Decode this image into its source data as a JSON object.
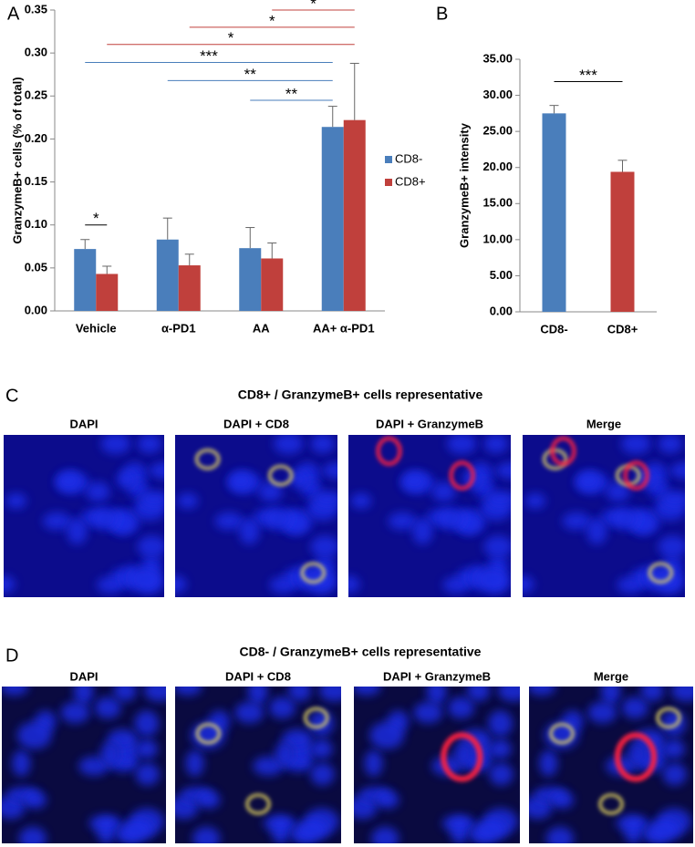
{
  "chart_data": [
    {
      "type": "grouped_bar",
      "panel": "A",
      "ylabel": "GranzymeB+ cells (% of total)",
      "categories": [
        "Vehicle",
        "α-PD1",
        "AA",
        "AA+ α-PD1"
      ],
      "series": [
        {
          "name": "CD8-",
          "color": "#4a7ebb",
          "values": [
            0.072,
            0.083,
            0.073,
            0.214
          ],
          "errors": [
            0.011,
            0.025,
            0.024,
            0.024
          ]
        },
        {
          "name": "CD8+",
          "color": "#c0403c",
          "values": [
            0.043,
            0.053,
            0.061,
            0.222
          ],
          "errors": [
            0.009,
            0.013,
            0.018,
            0.066
          ]
        }
      ],
      "ylim": [
        0,
        0.35
      ],
      "yticks": [
        {
          "value": 0,
          "label": "0.00"
        },
        {
          "value": 0.05,
          "label": "0.05"
        },
        {
          "value": 0.1,
          "label": "0.10"
        },
        {
          "value": 0.15,
          "label": "0.15"
        },
        {
          "value": 0.2,
          "label": "0.20"
        },
        {
          "value": 0.25,
          "label": "0.25"
        },
        {
          "value": 0.3,
          "label": "0.30"
        },
        {
          "value": 0.35,
          "label": "0.35"
        }
      ],
      "legend": "right",
      "brackets": [
        {
          "label": "*",
          "y": 0.1,
          "from": [
            0,
            0
          ],
          "to": [
            0,
            1
          ],
          "color": "#000000"
        },
        {
          "label": "**",
          "y": 0.245,
          "from": [
            2,
            0
          ],
          "to": [
            3,
            0
          ],
          "color": "#4a7ebb"
        },
        {
          "label": "**",
          "y": 0.268,
          "from": [
            1,
            0
          ],
          "to": [
            3,
            0
          ],
          "color": "#4a7ebb"
        },
        {
          "label": "***",
          "y": 0.289,
          "from": [
            0,
            0
          ],
          "to": [
            3,
            0
          ],
          "color": "#4a7ebb"
        },
        {
          "label": "*",
          "y": 0.31,
          "from": [
            0,
            1
          ],
          "to": [
            3,
            1
          ],
          "color": "#c0403c"
        },
        {
          "label": "*",
          "y": 0.33,
          "from": [
            1,
            1
          ],
          "to": [
            3,
            1
          ],
          "color": "#c0403c"
        },
        {
          "label": "*",
          "y": 0.35,
          "from": [
            2,
            1
          ],
          "to": [
            3,
            1
          ],
          "color": "#c0403c"
        }
      ]
    },
    {
      "type": "bar",
      "panel": "B",
      "ylabel": "GranzymeB+ intensity",
      "categories": [
        "CD8-",
        "CD8+"
      ],
      "values": [
        27.5,
        19.4
      ],
      "errors": [
        1.1,
        1.6
      ],
      "colors": [
        "#4a7ebb",
        "#c0403c"
      ],
      "ylim": [
        0,
        35
      ],
      "yticks": [
        {
          "value": 0,
          "label": "0.00"
        },
        {
          "value": 5,
          "label": "5.00"
        },
        {
          "value": 10,
          "label": "10.00"
        },
        {
          "value": 15,
          "label": "15.00"
        },
        {
          "value": 20,
          "label": "20.00"
        },
        {
          "value": 25,
          "label": "25.00"
        },
        {
          "value": 30,
          "label": "30.00"
        },
        {
          "value": 35,
          "label": "35.00"
        }
      ],
      "brackets": [
        {
          "label": "***",
          "y": 31.9,
          "from": [
            0
          ],
          "to": [
            1
          ],
          "color": "#000000"
        }
      ]
    }
  ],
  "panels": [
    {
      "label": "C",
      "title": "CD8+ / GranzymeB+ cells representative",
      "images": [
        "DAPI",
        "DAPI + CD8",
        "DAPI + GranzymeB",
        "Merge"
      ]
    },
    {
      "label": "D",
      "title": "CD8- / GranzymeB+ cells representative",
      "images": [
        "DAPI",
        "DAPI + CD8",
        "DAPI + GranzymeB",
        "Merge"
      ]
    }
  ]
}
